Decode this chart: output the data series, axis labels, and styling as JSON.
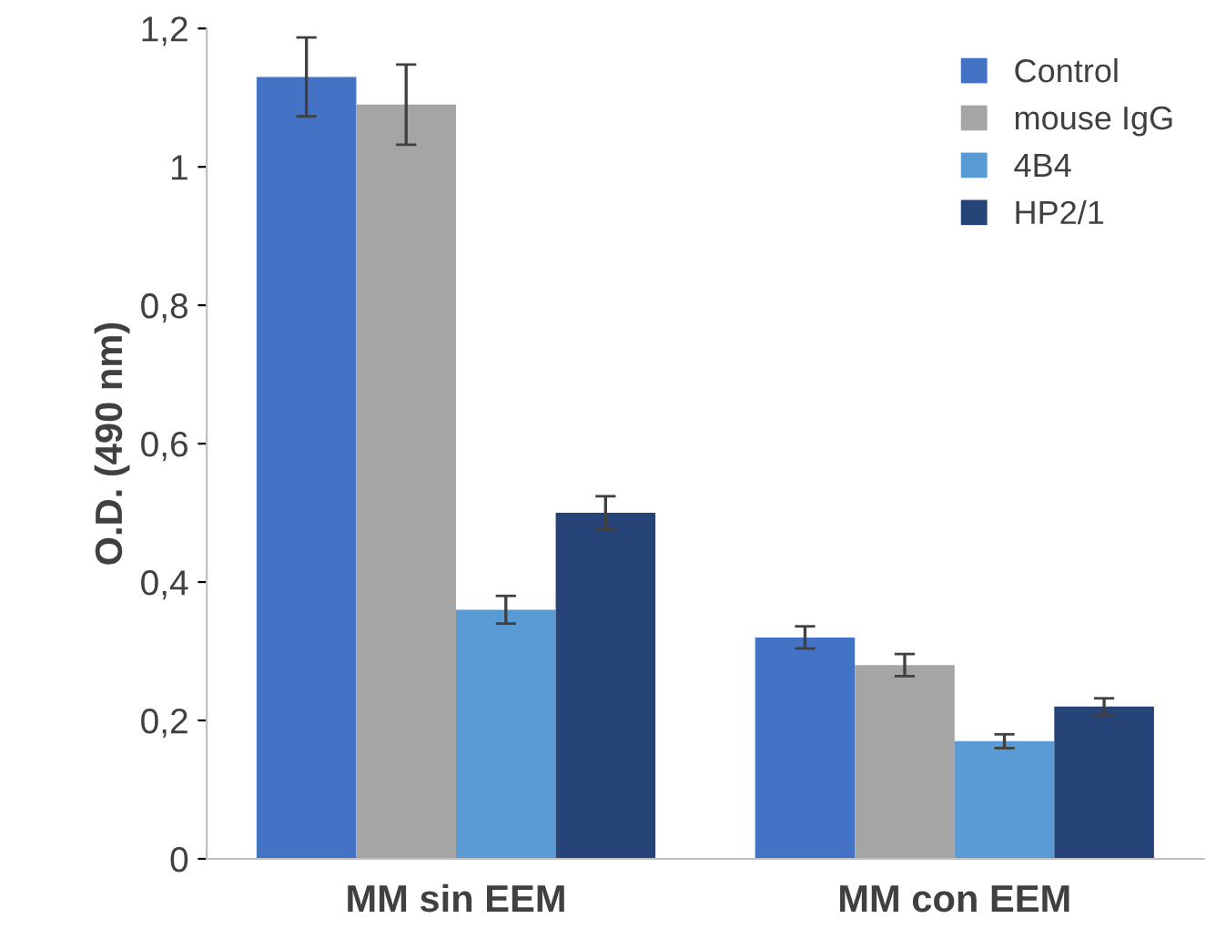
{
  "chart_data": {
    "type": "bar",
    "ylabel": "O.D. (490 nm)",
    "categories": [
      "MM sin EEM",
      "MM con EEM"
    ],
    "series": [
      {
        "name": "Control",
        "color": "#4472c4",
        "values": [
          1.13,
          0.32
        ],
        "errors": [
          0.057,
          0.016
        ]
      },
      {
        "name": "mouse IgG",
        "color": "#a5a5a5",
        "values": [
          1.09,
          0.28
        ],
        "errors": [
          0.058,
          0.016
        ]
      },
      {
        "name": "4B4",
        "color": "#5b9bd5",
        "values": [
          0.36,
          0.17
        ],
        "errors": [
          0.02,
          0.01
        ]
      },
      {
        "name": "HP2/1",
        "color": "#264478",
        "values": [
          0.5,
          0.22
        ],
        "errors": [
          0.024,
          0.012
        ]
      }
    ],
    "ylim": [
      0,
      1.2
    ],
    "yticks": [
      0,
      {
        "value": 0.2,
        "label": "0,2"
      },
      {
        "value": 0.4,
        "label": "0,4"
      },
      {
        "value": 0.6,
        "label": "0,6"
      },
      {
        "value": 0.8,
        "label": "0,8"
      },
      1,
      {
        "value": 1.2,
        "label": "1,2"
      }
    ],
    "grid": false,
    "legend": "top right"
  }
}
